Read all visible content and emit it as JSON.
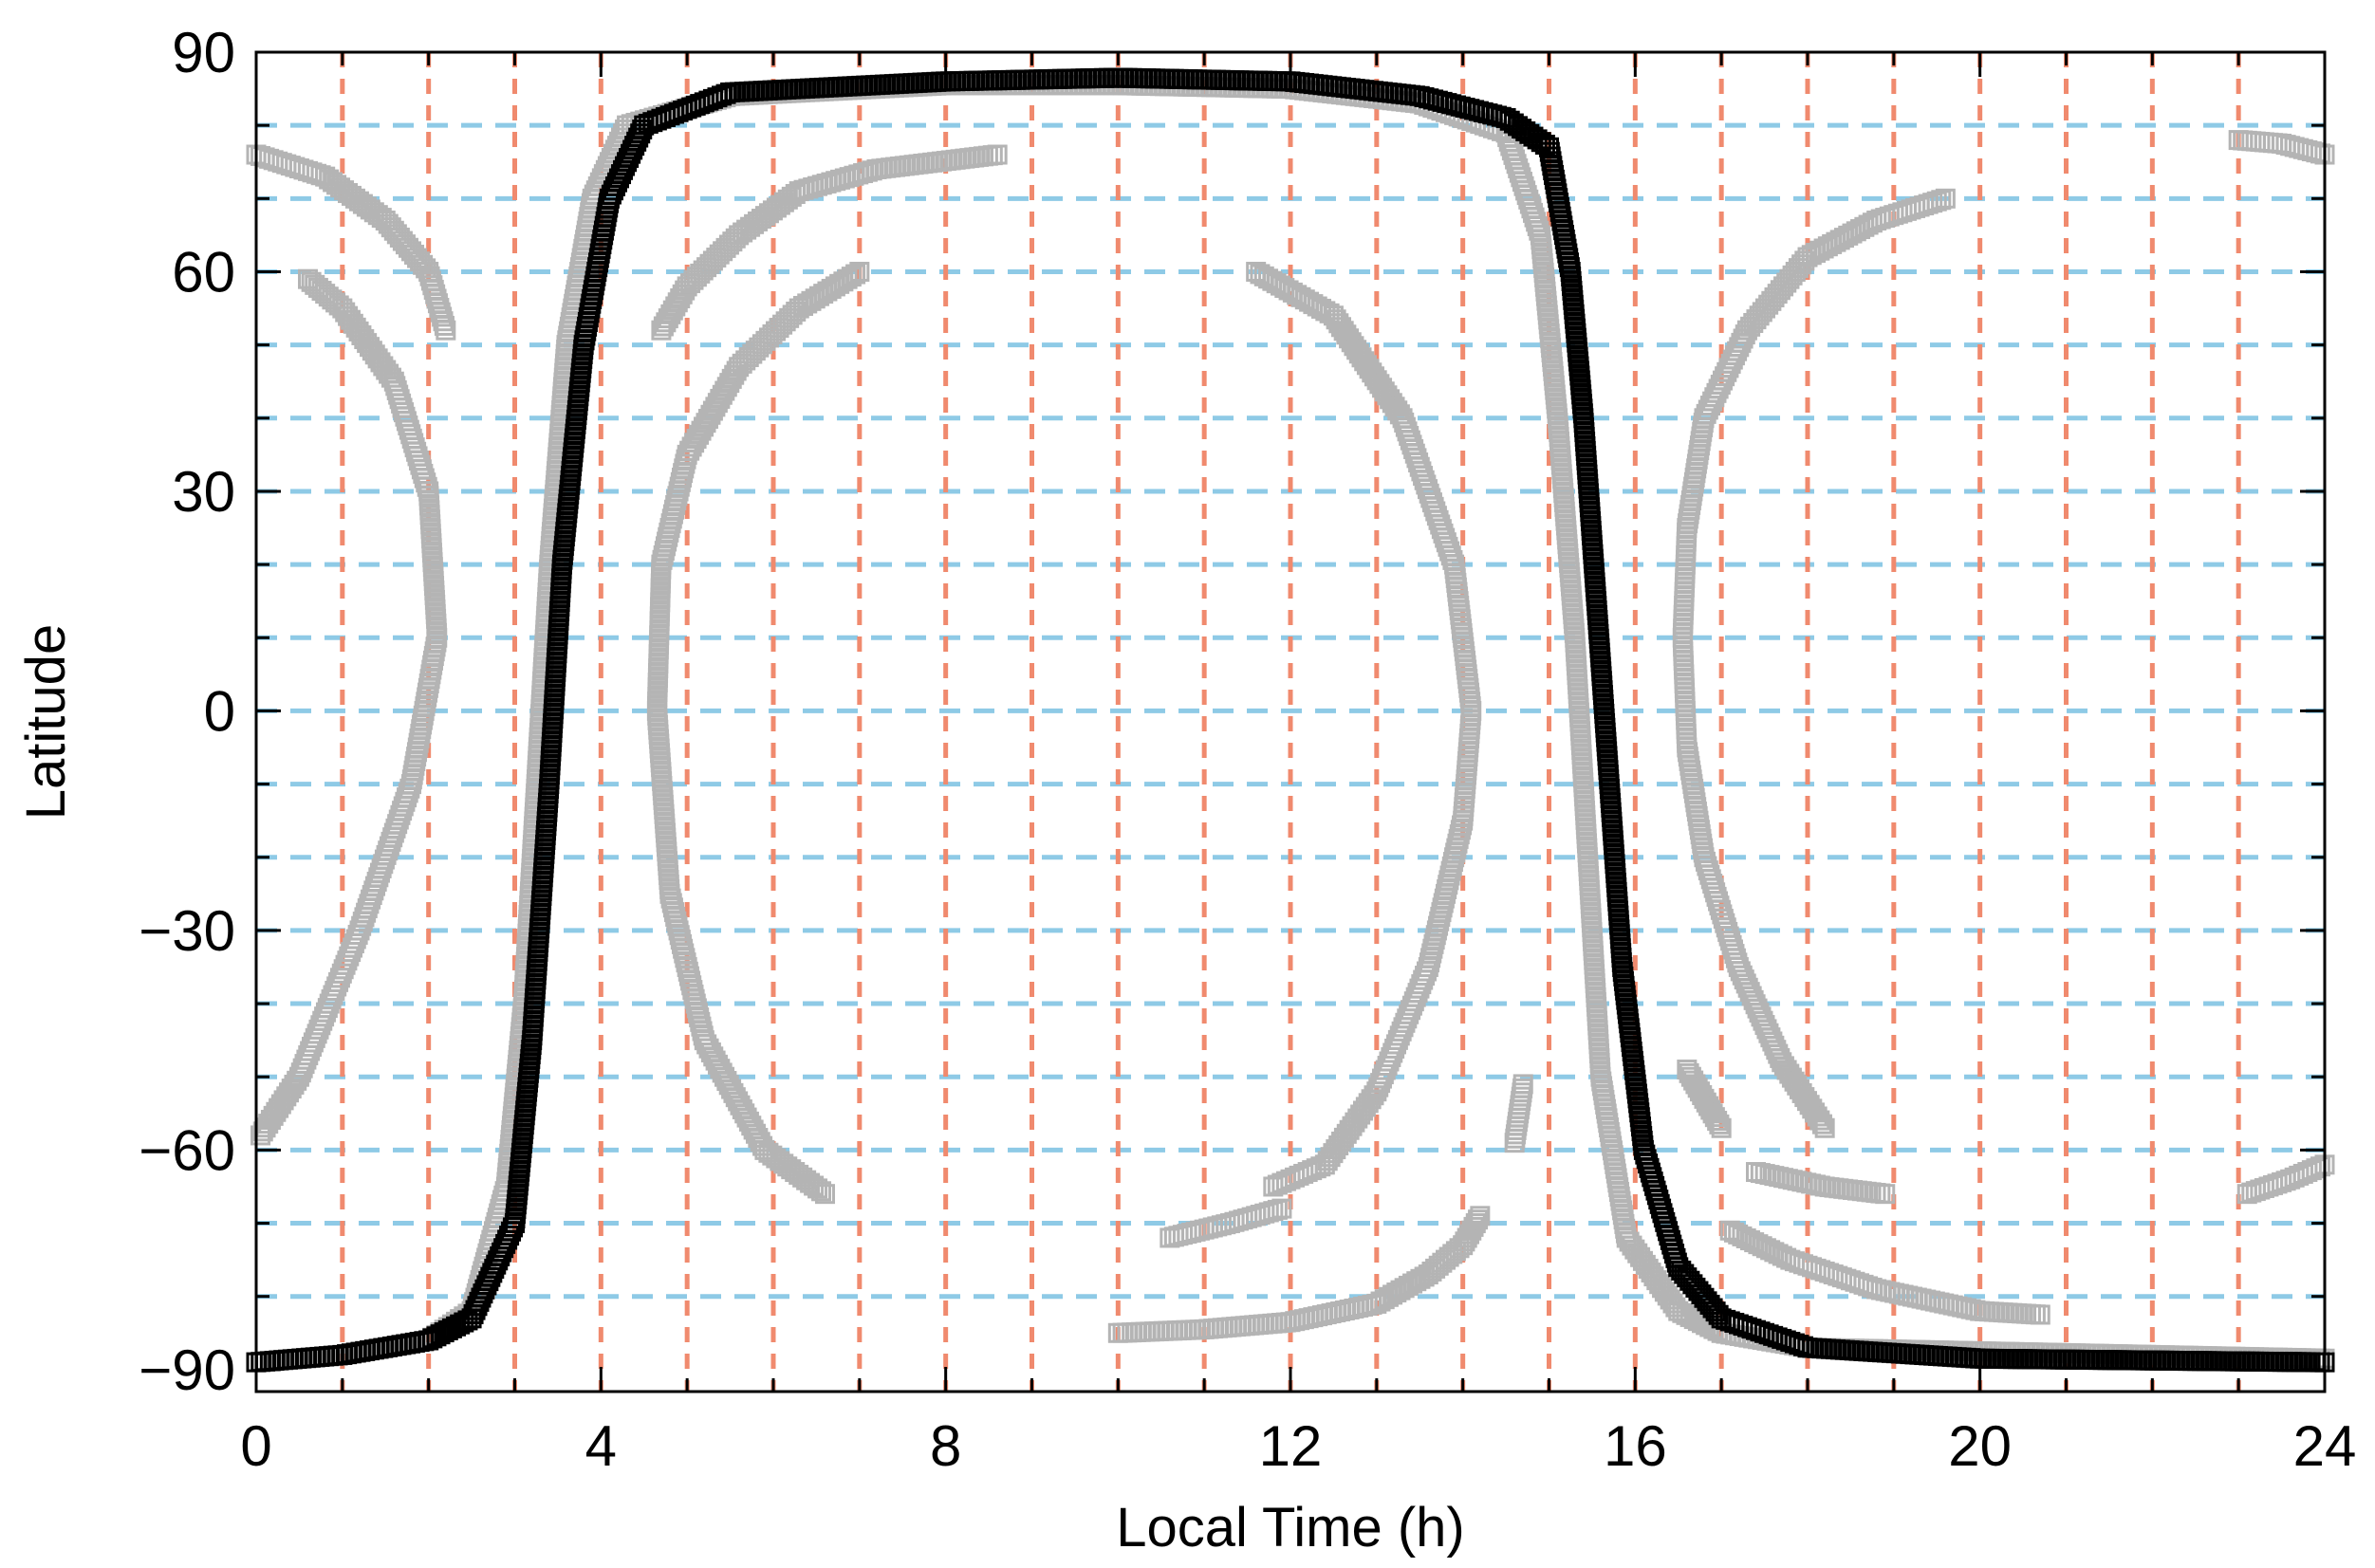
{
  "chart_data": {
    "type": "scatter",
    "title": "",
    "xlabel": "Local Time (h)",
    "ylabel": "Latitude",
    "xlim": [
      0,
      24
    ],
    "ylim": [
      -93,
      90
    ],
    "xticks": [
      0,
      4,
      8,
      12,
      16,
      20,
      24
    ],
    "yticks": [
      90,
      60,
      30,
      0,
      -30,
      -60,
      -90
    ],
    "ytick_labels": [
      "90",
      "60",
      "30",
      "0",
      "−30",
      "−60",
      "−90"
    ],
    "grid": {
      "vertical_color": "#f08a6e",
      "vertical_x": [
        1,
        2,
        3,
        4,
        5,
        6,
        7,
        8,
        9,
        10,
        11,
        12,
        13,
        14,
        15,
        16,
        17,
        18,
        19,
        20,
        21,
        22,
        23
      ],
      "horizontal_color": "#8ecae6",
      "horizontal_y": [
        80,
        70,
        60,
        50,
        40,
        30,
        20,
        10,
        0,
        -10,
        -20,
        -30,
        -40,
        -50,
        -60,
        -70,
        -80
      ]
    },
    "marker": "open-square",
    "series": [
      {
        "color": "#000000",
        "points": [
          [
            0,
            -89
          ],
          [
            1,
            -88
          ],
          [
            2,
            -86
          ],
          [
            2.5,
            -83
          ],
          [
            3,
            -70
          ],
          [
            3.2,
            -45
          ],
          [
            3.4,
            -10
          ],
          [
            3.55,
            20
          ],
          [
            3.8,
            50
          ],
          [
            4.1,
            70
          ],
          [
            4.5,
            80
          ],
          [
            5.5,
            84.5
          ],
          [
            8,
            86
          ],
          [
            10,
            86.5
          ],
          [
            12,
            86
          ],
          [
            13.5,
            84
          ],
          [
            14.5,
            81
          ],
          [
            15,
            77
          ],
          [
            15.25,
            60
          ],
          [
            15.4,
            40
          ],
          [
            15.55,
            15
          ],
          [
            15.7,
            -10
          ],
          [
            15.85,
            -35
          ],
          [
            16.1,
            -60
          ],
          [
            16.5,
            -76
          ],
          [
            17,
            -83
          ],
          [
            18,
            -87
          ],
          [
            20,
            -88.5
          ],
          [
            24,
            -89
          ]
        ]
      },
      {
        "color": "#b4b4b4",
        "points": [
          [
            0,
            -89
          ],
          [
            1,
            -88
          ],
          [
            2,
            -86
          ],
          [
            2.5,
            -82
          ],
          [
            2.9,
            -65
          ],
          [
            3.1,
            -40
          ],
          [
            3.25,
            -10
          ],
          [
            3.4,
            20
          ],
          [
            3.6,
            50
          ],
          [
            3.9,
            70
          ],
          [
            4.3,
            80
          ],
          [
            5.5,
            84
          ],
          [
            8,
            85.5
          ],
          [
            10,
            85.5
          ],
          [
            12,
            85
          ],
          [
            13.5,
            83
          ],
          [
            14.5,
            79
          ],
          [
            14.9,
            65
          ],
          [
            15.1,
            40
          ],
          [
            15.3,
            10
          ],
          [
            15.45,
            -20
          ],
          [
            15.6,
            -50
          ],
          [
            15.9,
            -72
          ],
          [
            16.5,
            -82
          ],
          [
            17,
            -85
          ],
          [
            18,
            -87
          ],
          [
            24,
            -88.5
          ]
        ]
      },
      {
        "color": "#b4b4b4",
        "points": [
          [
            0.05,
            -58
          ],
          [
            0.5,
            -50
          ],
          [
            1.2,
            -30
          ],
          [
            1.8,
            -10
          ],
          [
            2.1,
            10
          ],
          [
            2.0,
            30
          ],
          [
            1.6,
            45
          ],
          [
            1.0,
            55
          ],
          [
            0.6,
            59
          ]
        ]
      },
      {
        "color": "#b4b4b4",
        "points": [
          [
            0,
            76
          ],
          [
            0.8,
            73
          ],
          [
            1.5,
            67
          ],
          [
            2.0,
            60
          ],
          [
            2.2,
            52
          ]
        ]
      },
      {
        "color": "#b4b4b4",
        "points": [
          [
            6.6,
            -66
          ],
          [
            5.9,
            -60
          ],
          [
            5.2,
            -45
          ],
          [
            4.8,
            -25
          ],
          [
            4.65,
            0
          ],
          [
            4.7,
            20
          ],
          [
            5.0,
            35
          ],
          [
            5.6,
            47
          ],
          [
            6.3,
            55
          ],
          [
            7.0,
            60
          ]
        ]
      },
      {
        "color": "#b4b4b4",
        "points": [
          [
            4.7,
            52
          ],
          [
            5.0,
            58
          ],
          [
            5.6,
            65
          ],
          [
            6.3,
            71
          ],
          [
            7.2,
            74
          ],
          [
            8.6,
            76
          ]
        ]
      },
      {
        "color": "#b4b4b4",
        "points": [
          [
            11.6,
            60
          ],
          [
            12.5,
            54
          ],
          [
            13.3,
            40
          ],
          [
            13.9,
            20
          ],
          [
            14.1,
            0
          ],
          [
            14.0,
            -15
          ],
          [
            13.6,
            -35
          ],
          [
            13.0,
            -52
          ],
          [
            12.4,
            -62
          ],
          [
            11.8,
            -65
          ]
        ]
      },
      {
        "color": "#b4b4b4",
        "points": [
          [
            10.0,
            -85
          ],
          [
            11.0,
            -84.5
          ],
          [
            12.0,
            -83.5
          ],
          [
            13.0,
            -81
          ],
          [
            13.6,
            -77
          ],
          [
            14.0,
            -73
          ],
          [
            14.2,
            -69
          ]
        ]
      },
      {
        "color": "#b4b4b4",
        "points": [
          [
            10.6,
            -72
          ],
          [
            11.3,
            -70
          ],
          [
            11.9,
            -68
          ]
        ]
      },
      {
        "color": "#b4b4b4",
        "points": [
          [
            14.6,
            -59
          ],
          [
            14.65,
            -55
          ],
          [
            14.7,
            -51
          ]
        ]
      },
      {
        "color": "#b4b4b4",
        "points": [
          [
            19.6,
            70
          ],
          [
            18.8,
            67
          ],
          [
            18.0,
            62
          ],
          [
            17.3,
            52
          ],
          [
            16.8,
            40
          ],
          [
            16.6,
            25
          ],
          [
            16.55,
            10
          ],
          [
            16.6,
            -5
          ],
          [
            16.8,
            -20
          ],
          [
            17.2,
            -35
          ],
          [
            17.7,
            -48
          ],
          [
            18.2,
            -57
          ]
        ]
      },
      {
        "color": "#b4b4b4",
        "points": [
          [
            16.6,
            -49
          ],
          [
            16.8,
            -53
          ],
          [
            17.0,
            -57
          ]
        ]
      },
      {
        "color": "#b4b4b4",
        "points": [
          [
            17.4,
            -63
          ],
          [
            18.2,
            -65
          ],
          [
            18.9,
            -66
          ]
        ]
      },
      {
        "color": "#b4b4b4",
        "points": [
          [
            17.1,
            -71
          ],
          [
            17.8,
            -75
          ],
          [
            18.8,
            -79
          ],
          [
            20.0,
            -82
          ],
          [
            20.7,
            -82.5
          ]
        ]
      },
      {
        "color": "#b4b4b4",
        "points": [
          [
            23.0,
            78
          ],
          [
            23.5,
            77.5
          ],
          [
            24,
            76
          ]
        ]
      },
      {
        "color": "#b4b4b4",
        "points": [
          [
            23.1,
            -66
          ],
          [
            23.6,
            -64
          ],
          [
            24,
            -62
          ]
        ]
      }
    ]
  }
}
